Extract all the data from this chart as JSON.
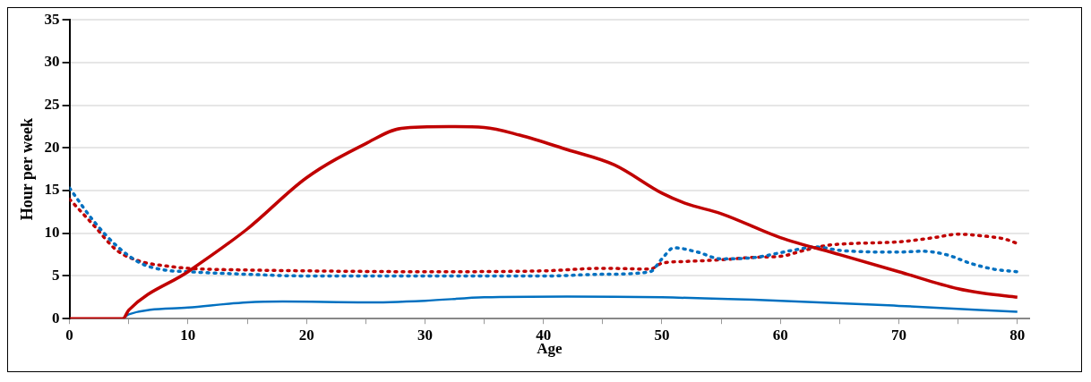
{
  "chart_data": {
    "type": "line",
    "xlabel": "Age",
    "ylabel": "Hour per week",
    "xlim": [
      0,
      81
    ],
    "ylim": [
      0,
      35
    ],
    "xticks": [
      0,
      {
        "value": 5,
        "label": null
      },
      10,
      {
        "value": 15,
        "label": null
      },
      20,
      {
        "value": 25,
        "label": null
      },
      30,
      {
        "value": 35,
        "label": null
      },
      40,
      {
        "value": 45,
        "label": null
      },
      50,
      {
        "value": 55,
        "label": null
      },
      60,
      {
        "value": 65,
        "label": null
      },
      70,
      {
        "value": 75,
        "label": null
      },
      80
    ],
    "yticks": [
      0,
      5,
      10,
      15,
      20,
      25,
      30,
      35
    ],
    "grid": "y",
    "legend": false,
    "marker": "none",
    "series": [
      {
        "color": "#c00000",
        "line_style": "solid",
        "x": [
          0,
          4.5,
          5,
          10,
          15,
          20,
          25,
          28,
          32,
          35,
          38,
          42,
          46,
          50,
          52,
          55,
          60,
          65,
          70,
          75,
          77,
          80
        ],
        "values": [
          0,
          0,
          1,
          5.5,
          10.5,
          16.5,
          20.5,
          22.3,
          22.5,
          22.4,
          21.5,
          19.8,
          18,
          14.7,
          13.5,
          12.3,
          9.5,
          7.5,
          5.5,
          3.5,
          3,
          2.5
        ]
      },
      {
        "color": "#0070c0",
        "line_style": "solid",
        "x": [
          4.5,
          5,
          10,
          15,
          18,
          25,
          30,
          35,
          42,
          50,
          60,
          70,
          80
        ],
        "values": [
          0,
          0.5,
          1.3,
          1.9,
          2,
          1.9,
          2.1,
          2.5,
          2.6,
          2.5,
          2.1,
          1.5,
          0.8
        ]
      },
      {
        "color": "#0070c0",
        "line_style": "dotted",
        "x": [
          0,
          2,
          4,
          6,
          8,
          10,
          15,
          20,
          30,
          40,
          45,
          49,
          50,
          51,
          53,
          55,
          58,
          61,
          63,
          65,
          70,
          72,
          74,
          76,
          78,
          80
        ],
        "values": [
          15.3,
          11.5,
          8.5,
          6.5,
          5.7,
          5.5,
          5.2,
          5,
          5,
          5,
          5.2,
          5.5,
          7,
          8.3,
          7.8,
          7,
          7.2,
          8,
          8.4,
          8,
          7.8,
          7.9,
          7.5,
          6.5,
          5.8,
          5.5
        ]
      },
      {
        "color": "#c00000",
        "line_style": "dotted",
        "x": [
          0,
          2,
          4,
          6,
          8,
          10,
          15,
          20,
          30,
          40,
          45,
          49,
          50,
          52,
          55,
          58,
          60,
          62,
          64,
          66,
          70,
          73,
          75,
          77,
          79,
          80
        ],
        "values": [
          14,
          11,
          8,
          6.7,
          6.2,
          5.9,
          5.7,
          5.6,
          5.5,
          5.6,
          5.9,
          5.8,
          6.5,
          6.7,
          6.9,
          7.2,
          7.3,
          8,
          8.6,
          8.8,
          9,
          9.5,
          9.9,
          9.7,
          9.3,
          8.8
        ]
      }
    ]
  }
}
